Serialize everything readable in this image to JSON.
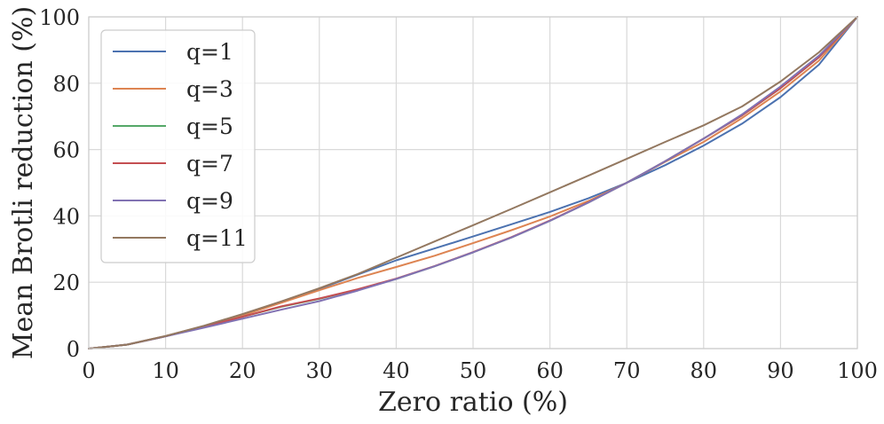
{
  "chart_data": {
    "type": "line",
    "title": "",
    "xlabel": "Zero ratio (%)",
    "ylabel": "Mean Brotli reduction (%)",
    "xlim": [
      0,
      100
    ],
    "ylim": [
      0,
      100
    ],
    "xticks": [
      0,
      10,
      20,
      30,
      40,
      50,
      60,
      70,
      80,
      90,
      100
    ],
    "yticks": [
      0,
      20,
      40,
      60,
      80,
      100
    ],
    "grid": true,
    "legend_position": "upper-left",
    "x": [
      0,
      5,
      10,
      15,
      20,
      25,
      30,
      35,
      40,
      45,
      50,
      55,
      60,
      65,
      70,
      75,
      80,
      85,
      90,
      95,
      100
    ],
    "series": [
      {
        "name": "q=1",
        "color": "#4c72b0",
        "values": [
          0,
          1.2,
          3.8,
          6.8,
          10.2,
          14.0,
          18.0,
          22.3,
          26.6,
          30.2,
          33.8,
          37.5,
          41.2,
          45.3,
          50.0,
          55.3,
          61.2,
          67.8,
          75.8,
          85.6,
          100
        ]
      },
      {
        "name": "q=3",
        "color": "#dd8452",
        "values": [
          0,
          1.2,
          3.8,
          6.8,
          10.0,
          13.8,
          17.6,
          21.3,
          24.6,
          28.0,
          31.8,
          35.7,
          39.8,
          44.5,
          50.0,
          56.3,
          62.3,
          69.5,
          77.5,
          86.8,
          100
        ]
      },
      {
        "name": "q=5",
        "color": "#55a868",
        "values": [
          0,
          1.2,
          3.7,
          6.6,
          9.6,
          12.6,
          15.0,
          17.8,
          21.0,
          24.8,
          29.0,
          33.5,
          38.5,
          44.0,
          50.0,
          56.5,
          63.3,
          70.3,
          78.5,
          87.8,
          100
        ]
      },
      {
        "name": "q=7",
        "color": "#c44e52",
        "values": [
          0,
          1.2,
          3.7,
          6.6,
          9.6,
          12.7,
          15.1,
          17.9,
          21.1,
          24.9,
          29.1,
          33.6,
          38.6,
          44.1,
          50.0,
          56.5,
          63.3,
          70.3,
          78.5,
          87.8,
          100
        ]
      },
      {
        "name": "q=9",
        "color": "#8172b3",
        "values": [
          0,
          1.2,
          3.7,
          6.3,
          9.0,
          11.7,
          14.3,
          17.5,
          21.0,
          24.8,
          29.0,
          33.5,
          38.5,
          44.0,
          50.0,
          56.5,
          63.3,
          70.6,
          79.0,
          88.3,
          100
        ]
      },
      {
        "name": "q=11",
        "color": "#937860",
        "values": [
          0,
          1.2,
          3.8,
          6.9,
          10.4,
          14.2,
          18.2,
          22.5,
          27.4,
          32.3,
          37.2,
          42.1,
          47.1,
          52.1,
          57.2,
          62.3,
          67.3,
          73.0,
          80.5,
          89.3,
          100
        ]
      }
    ]
  }
}
